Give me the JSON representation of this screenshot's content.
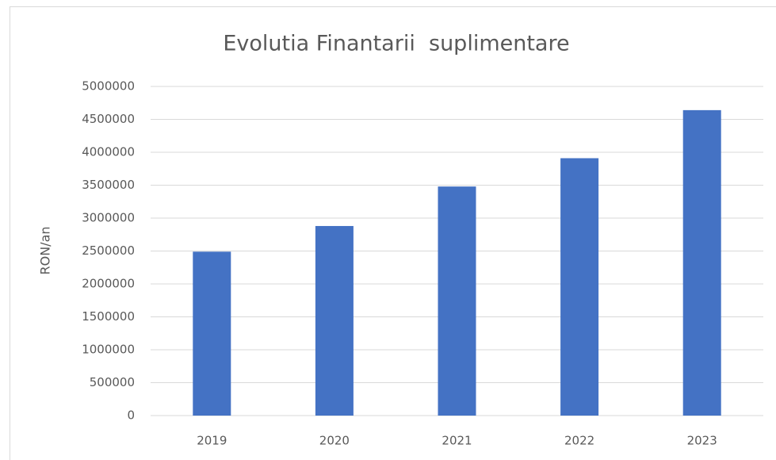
{
  "chart_data": {
    "type": "bar",
    "title": "Evolutia Finantarii  suplimentare",
    "y_label": "RON/an",
    "categories": [
      "2019",
      "2020",
      "2021",
      "2022",
      "2023"
    ],
    "values": [
      2490000,
      2880000,
      3480000,
      3910000,
      4640000
    ],
    "color": "#4472c4",
    "ylim": [
      0,
      5000000
    ],
    "yticks": [
      0,
      500000,
      1000000,
      1500000,
      2000000,
      2500000,
      3000000,
      3500000,
      4000000,
      4500000,
      5000000
    ],
    "grid": true
  }
}
